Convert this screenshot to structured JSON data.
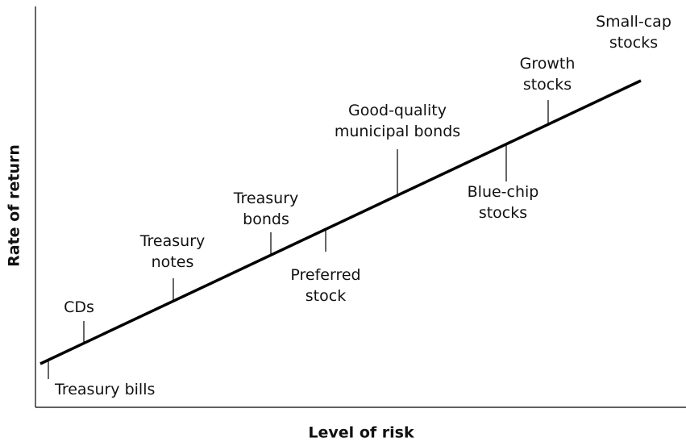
{
  "axes": {
    "y_label": "Rate of return",
    "x_label": "Level of risk"
  },
  "nodes": [
    {
      "label": [
        "Treasury bills"
      ]
    },
    {
      "label": [
        "CDs"
      ]
    },
    {
      "label": [
        "Treasury",
        "notes"
      ]
    },
    {
      "label": [
        "Treasury",
        "bonds"
      ]
    },
    {
      "label": [
        "Preferred",
        "stock"
      ]
    },
    {
      "label": [
        "Good-quality",
        "municipal bonds"
      ]
    },
    {
      "label": [
        "Blue-chip",
        "stocks"
      ]
    },
    {
      "label": [
        "Growth",
        "stocks"
      ]
    },
    {
      "label": [
        "Small-cap",
        "stocks"
      ]
    }
  ]
}
